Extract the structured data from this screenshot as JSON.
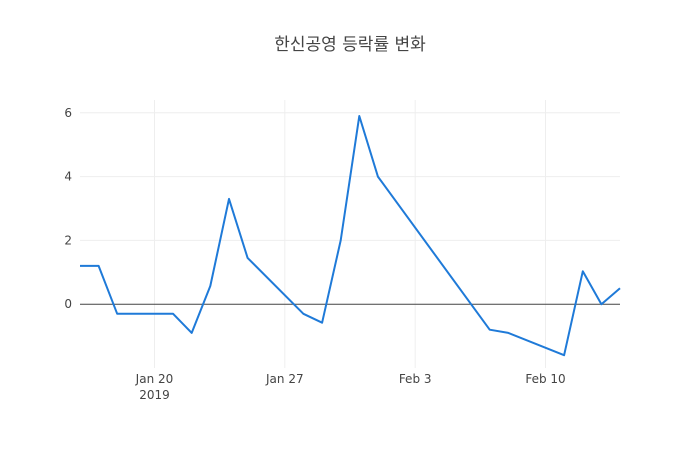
{
  "chart_data": {
    "type": "line",
    "title": "한신공영 등락률 변화",
    "xlabel": "",
    "ylabel": "",
    "ylim": [
      -2.0,
      6.4
    ],
    "y_ticks": [
      0,
      2,
      4,
      6
    ],
    "y_tick_labels": [
      "0",
      "2",
      "4",
      "6"
    ],
    "x_range": [
      "2019-01-16",
      "2019-02-14"
    ],
    "x_ticks": [
      {
        "date": "2019-01-20",
        "label": "Jan 20",
        "sublabel": "2019"
      },
      {
        "date": "2019-01-27",
        "label": "Jan 27",
        "sublabel": ""
      },
      {
        "date": "2019-02-03",
        "label": "Feb 3",
        "sublabel": ""
      },
      {
        "date": "2019-02-10",
        "label": "Feb 10",
        "sublabel": ""
      }
    ],
    "grid": true,
    "series": [
      {
        "color": "#1f7ad8",
        "x": [
          "2019-01-16",
          "2019-01-17",
          "2019-01-18",
          "2019-01-21",
          "2019-01-22",
          "2019-01-23",
          "2019-01-24",
          "2019-01-25",
          "2019-01-28",
          "2019-01-29",
          "2019-01-30",
          "2019-01-31",
          "2019-02-01",
          "2019-02-07",
          "2019-02-08",
          "2019-02-11",
          "2019-02-12",
          "2019-02-13",
          "2019-02-14"
        ],
        "values": [
          1.2,
          1.2,
          -0.3,
          -0.3,
          -0.9,
          0.57,
          3.3,
          1.45,
          -0.3,
          -0.58,
          2.0,
          5.9,
          4.0,
          -0.8,
          -0.9,
          -1.6,
          1.03,
          0.0,
          0.5
        ]
      }
    ]
  }
}
